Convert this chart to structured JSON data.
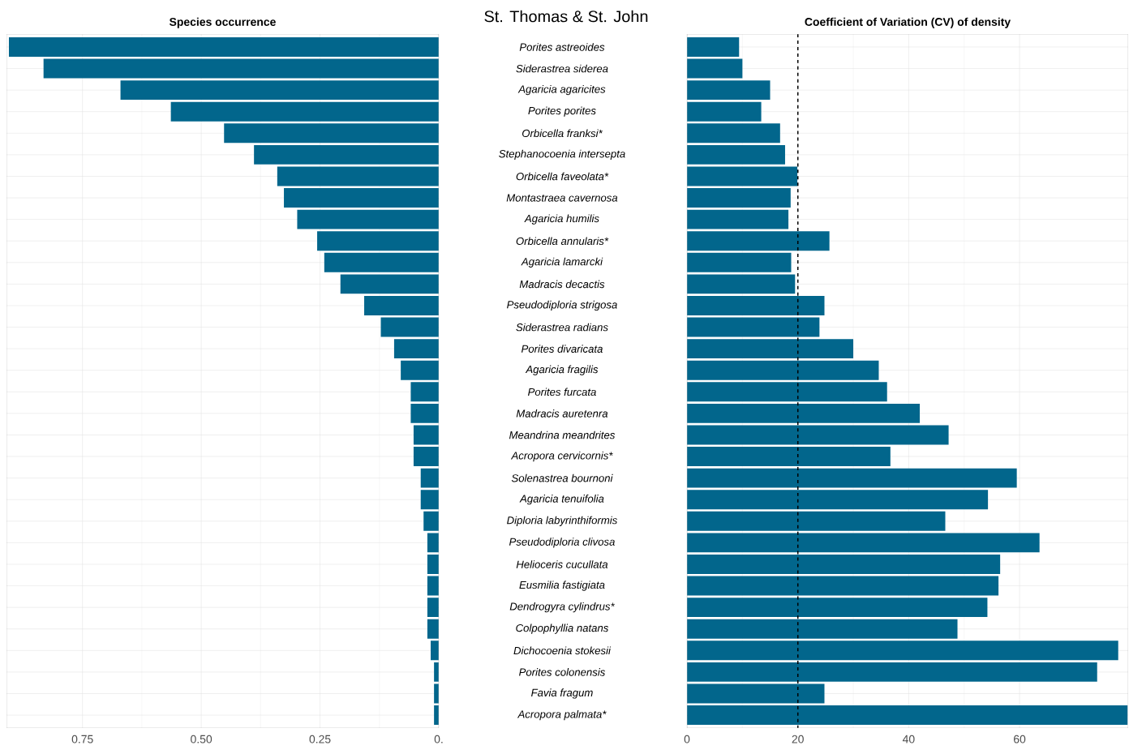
{
  "chart_data": [
    {
      "type": "bar",
      "orientation": "horizontal",
      "title": "Species occurrence",
      "annotations": [
        "St. Thomas & St. John"
      ],
      "categories": [
        "Porites astreoides",
        "Siderastrea siderea",
        "Agaricia agaricites",
        "Porites porites",
        "Orbicella franksi*",
        "Stephanocoenia intersepta",
        "Orbicella faveolata*",
        "Montastraea cavernosa",
        "Agaricia humilis",
        "Orbicella annularis*",
        "Agaricia lamarcki",
        "Madracis decactis",
        "Pseudodiploria strigosa",
        "Siderastrea radians",
        "Porites divaricata",
        "Agaricia fragilis",
        "Porites furcata",
        "Madracis auretenra",
        "Meandrina meandrites",
        "Acropora cervicornis*",
        "Solenastrea bournoni",
        "Agaricia tenuifolia",
        "Diploria labyrinthiformis",
        "Pseudodiploria clivosa",
        "Helioceris cucullata",
        "Eusmilia fastigiata",
        "Dendrogyra cylindrus*",
        "Colpophyllia natans",
        "Dichocoenia stokesii",
        "Porites colonensis",
        "Favia fragum",
        "Acropora palmata*"
      ],
      "values": [
        0.905,
        0.832,
        0.67,
        0.564,
        0.452,
        0.389,
        0.34,
        0.326,
        0.298,
        0.256,
        0.241,
        0.207,
        0.157,
        0.122,
        0.094,
        0.08,
        0.059,
        0.059,
        0.053,
        0.053,
        0.038,
        0.038,
        0.032,
        0.024,
        0.024,
        0.024,
        0.024,
        0.024,
        0.017,
        0.01,
        0.01,
        0.01
      ],
      "color": "#02668c",
      "xlim": [
        0.91,
        0
      ],
      "xticks": [
        {
          "value": 0.75,
          "label": "0.75"
        },
        {
          "value": 0.5,
          "label": "0.50"
        },
        {
          "value": 0.25,
          "label": "0.25"
        },
        {
          "value": 0,
          "label": "0."
        }
      ],
      "grid": true
    },
    {
      "type": "bar",
      "orientation": "horizontal",
      "title": "Coefficient of Variation (CV) of density",
      "categories": [
        null,
        null,
        null,
        null,
        null,
        null,
        null,
        null,
        null,
        null,
        null,
        null,
        null,
        null,
        null,
        null,
        null,
        null,
        null,
        null,
        null,
        null,
        null,
        null,
        null,
        null,
        null,
        null,
        null,
        null,
        null,
        null
      ],
      "values": [
        9.4,
        10.0,
        15.0,
        13.4,
        16.8,
        17.7,
        19.9,
        18.7,
        18.3,
        25.7,
        18.8,
        19.5,
        24.8,
        23.9,
        30.0,
        34.6,
        36.1,
        42.0,
        47.2,
        36.7,
        59.5,
        54.3,
        46.6,
        63.6,
        56.5,
        56.2,
        54.2,
        48.8,
        77.8,
        74.0,
        24.8,
        79.5
      ],
      "color": "#02668c",
      "xlim": [
        0,
        79.6
      ],
      "xticks": [
        0,
        20,
        40,
        60
      ],
      "ref_lines": [
        {
          "axis": "x",
          "value": 20,
          "color": "#000000",
          "line_style": "dashed"
        }
      ],
      "grid": true,
      "tick_labels": "x"
    }
  ]
}
